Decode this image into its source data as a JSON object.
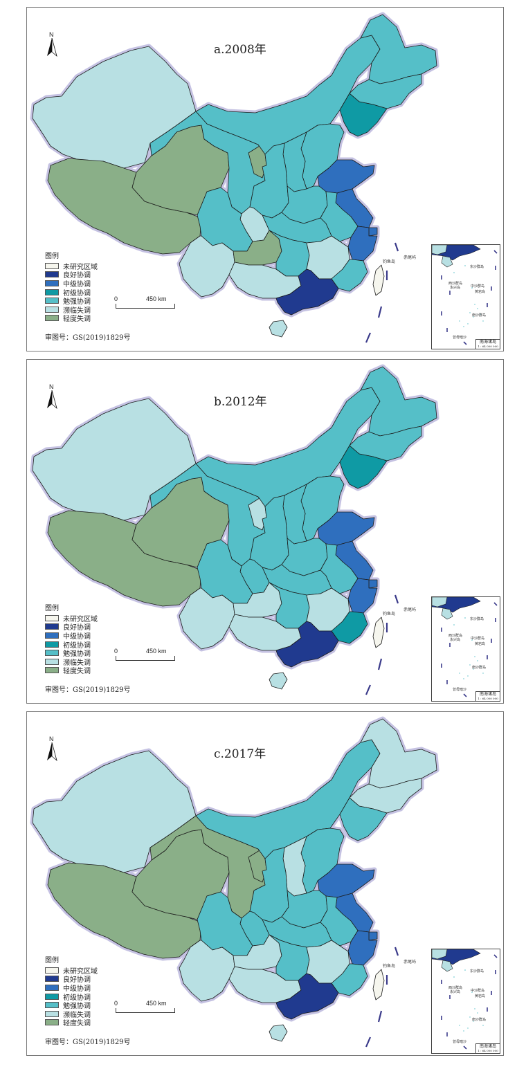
{
  "colors": {
    "no_data": "#f6f6ee",
    "good": "#203a8f",
    "intermediate": "#2f6fbe",
    "primary": "#0f9aa4",
    "barely": "#55bfc8",
    "verge_imbalance": "#b8e0e3",
    "mild_imbalance": "#8aaf88",
    "border_glow": "#b7b3dc"
  },
  "legend": {
    "title": "图例",
    "items": [
      {
        "key": "no_data",
        "label": "未研究区域"
      },
      {
        "key": "good",
        "label": "良好协调"
      },
      {
        "key": "intermediate",
        "label": "中级协调"
      },
      {
        "key": "primary",
        "label": "初级协调"
      },
      {
        "key": "barely",
        "label": "勉强协调"
      },
      {
        "key": "verge_imbalance",
        "label": "濒临失调"
      },
      {
        "key": "mild_imbalance",
        "label": "轻度失调"
      }
    ]
  },
  "scale": {
    "zero": "0",
    "length": "450 km"
  },
  "north_label": "N",
  "approval_note": "审图号：GS(2019)1829号",
  "island_labels": {
    "diaoyu": "钓鱼岛",
    "chiwei": "赤尾屿"
  },
  "inset": {
    "title": "南海诸岛",
    "scale_text": "1 : 64 000 000",
    "labels": {
      "dongsha": "东沙群岛",
      "xisha": "西沙群岛",
      "yongle": "永兴岛",
      "zhongsha": "中沙群岛",
      "huangyan": "黄岩岛",
      "nansha": "南沙群岛",
      "zengmu": "曾母暗沙"
    }
  },
  "panels": [
    {
      "title": "a.2008年",
      "regions": {
        "xinjiang": "verge_imbalance",
        "tibet": "mild_imbalance",
        "qinghai": "mild_imbalance",
        "gansu": "barely",
        "inner_mongolia": "barely",
        "ningxia": "mild_imbalance",
        "heilongjiang": "barely",
        "jilin": "barely",
        "liaoning": "primary",
        "beijing": "good",
        "tianjin": "primary",
        "hebei": "barely",
        "shanxi": "barely",
        "shaanxi": "barely",
        "henan": "barely",
        "shandong": "intermediate",
        "jiangsu": "intermediate",
        "shanghai": "intermediate",
        "zhejiang": "intermediate",
        "anhui": "barely",
        "hubei": "barely",
        "chongqing": "verge_imbalance",
        "sichuan": "barely",
        "yunnan": "verge_imbalance",
        "guizhou": "mild_imbalance",
        "guangxi": "verge_imbalance",
        "hunan": "barely",
        "jiangxi": "verge_imbalance",
        "fujian": "barely",
        "guangdong": "good",
        "hainan": "verge_imbalance",
        "taiwan": "no_data"
      }
    },
    {
      "title": "b.2012年",
      "regions": {
        "xinjiang": "verge_imbalance",
        "tibet": "mild_imbalance",
        "qinghai": "mild_imbalance",
        "gansu": "barely",
        "inner_mongolia": "barely",
        "ningxia": "verge_imbalance",
        "heilongjiang": "barely",
        "jilin": "barely",
        "liaoning": "primary",
        "beijing": "good",
        "tianjin": "primary",
        "hebei": "barely",
        "shanxi": "barely",
        "shaanxi": "barely",
        "henan": "barely",
        "shandong": "intermediate",
        "jiangsu": "intermediate",
        "shanghai": "intermediate",
        "zhejiang": "intermediate",
        "anhui": "barely",
        "hubei": "barely",
        "chongqing": "barely",
        "sichuan": "barely",
        "yunnan": "verge_imbalance",
        "guizhou": "verge_imbalance",
        "guangxi": "verge_imbalance",
        "hunan": "barely",
        "jiangxi": "verge_imbalance",
        "fujian": "primary",
        "guangdong": "good",
        "hainan": "verge_imbalance",
        "taiwan": "no_data"
      }
    },
    {
      "title": "c.2017年",
      "regions": {
        "xinjiang": "verge_imbalance",
        "tibet": "mild_imbalance",
        "qinghai": "mild_imbalance",
        "gansu": "mild_imbalance",
        "inner_mongolia": "barely",
        "ningxia": "mild_imbalance",
        "heilongjiang": "verge_imbalance",
        "jilin": "verge_imbalance",
        "liaoning": "barely",
        "beijing": "intermediate",
        "tianjin": "barely",
        "hebei": "barely",
        "shanxi": "verge_imbalance",
        "shaanxi": "barely",
        "henan": "barely",
        "shandong": "intermediate",
        "jiangsu": "intermediate",
        "shanghai": "intermediate",
        "zhejiang": "intermediate",
        "anhui": "barely",
        "hubei": "barely",
        "chongqing": "barely",
        "sichuan": "barely",
        "yunnan": "verge_imbalance",
        "guizhou": "verge_imbalance",
        "guangxi": "verge_imbalance",
        "hunan": "barely",
        "jiangxi": "verge_imbalance",
        "fujian": "barely",
        "guangdong": "good",
        "hainan": "verge_imbalance",
        "taiwan": "no_data"
      }
    }
  ]
}
